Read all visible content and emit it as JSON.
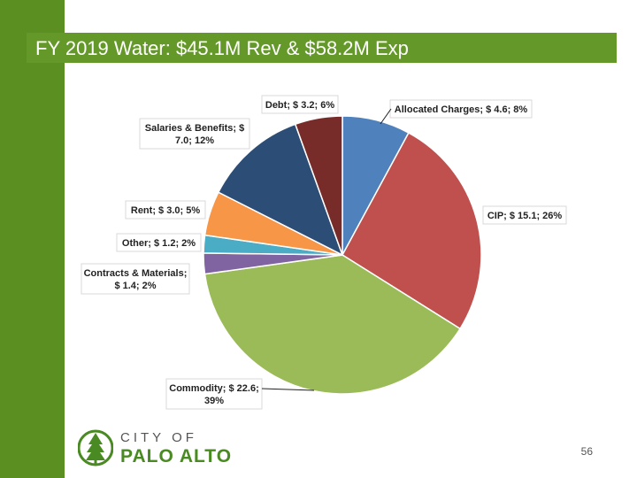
{
  "slide": {
    "title": "FY 2019 Water: $45.1M Rev & $58.2M Exp",
    "page_number": "56"
  },
  "logo": {
    "city_text": "CITY OF",
    "name_text": "PALO ALTO"
  },
  "colors": {
    "brand_green": "#64992a",
    "sidebar_green": "#5b8f22"
  },
  "chart_data": {
    "type": "pie",
    "title": "",
    "units": "$M",
    "slices": [
      {
        "name": "Allocated Charges",
        "value": 4.6,
        "percent": 8,
        "color": "#4f81bd",
        "label_lines": [
          "Allocated Charges; $ 4.6; 8%"
        ]
      },
      {
        "name": "CIP",
        "value": 15.1,
        "percent": 26,
        "color": "#c0504d",
        "label_lines": [
          "CIP; $ 15.1; 26%"
        ]
      },
      {
        "name": "Commodity",
        "value": 22.6,
        "percent": 39,
        "color": "#9bbb59",
        "label_lines": [
          "Commodity; $ 22.6;",
          "39%"
        ]
      },
      {
        "name": "Contracts & Materials",
        "value": 1.4,
        "percent": 2,
        "color": "#8064a2",
        "label_lines": [
          "Contracts & Materials;",
          "$ 1.4; 2%"
        ]
      },
      {
        "name": "Other",
        "value": 1.2,
        "percent": 2,
        "color": "#4bacc6",
        "label_lines": [
          "Other; $ 1.2; 2%"
        ]
      },
      {
        "name": "Rent",
        "value": 3.0,
        "percent": 5,
        "color": "#f79646",
        "label_lines": [
          "Rent; $ 3.0; 5%"
        ]
      },
      {
        "name": "Salaries & Benefits",
        "value": 7.0,
        "percent": 12,
        "color": "#2c4d75",
        "label_lines": [
          "Salaries & Benefits; $",
          "7.0; 12%"
        ]
      },
      {
        "name": "Debt",
        "value": 3.2,
        "percent": 6,
        "color": "#772c2a",
        "label_lines": [
          "Debt; $ 3.2; 6%"
        ]
      }
    ]
  }
}
